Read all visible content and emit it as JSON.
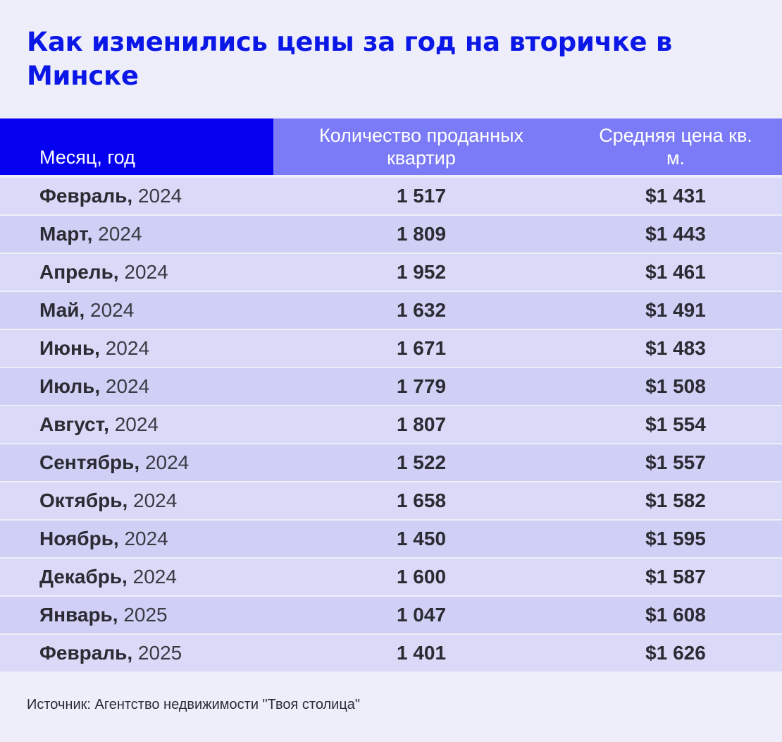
{
  "title": "Как изменились цены за год на вторичке в Минске",
  "chart_data": {
    "type": "table",
    "title": "Как изменились цены за год на вторичке в Минске",
    "columns": [
      "Месяц, год",
      "Количество проданных квартир",
      "Средняя цена кв. м."
    ],
    "rows": [
      {
        "month": "Февраль,",
        "year": "2024",
        "count": "1 517",
        "price": "$1 431"
      },
      {
        "month": "Март,",
        "year": "2024",
        "count": "1 809",
        "price": "$1 443"
      },
      {
        "month": "Апрель,",
        "year": "2024",
        "count": "1 952",
        "price": "$1 461"
      },
      {
        "month": "Май,",
        "year": "2024",
        "count": "1 632",
        "price": "$1 491"
      },
      {
        "month": "Июнь,",
        "year": "2024",
        "count": "1 671",
        "price": "$1 483"
      },
      {
        "month": "Июль,",
        "year": "2024",
        "count": "1 779",
        "price": "$1 508"
      },
      {
        "month": "Август,",
        "year": "2024",
        "count": "1 807",
        "price": "$1 554"
      },
      {
        "month": "Сентябрь,",
        "year": "2024",
        "count": "1 522",
        "price": "$1 557"
      },
      {
        "month": "Октябрь,",
        "year": "2024",
        "count": "1 658",
        "price": "$1 582"
      },
      {
        "month": "Ноябрь,",
        "year": "2024",
        "count": "1 450",
        "price": "$1 595"
      },
      {
        "month": "Декабрь,",
        "year": "2024",
        "count": "1 600",
        "price": "$1 587"
      },
      {
        "month": "Январь,",
        "year": "2025",
        "count": "1 047",
        "price": "$1 608"
      },
      {
        "month": "Февраль,",
        "year": "2025",
        "count": "1 401",
        "price": "$1 626"
      }
    ],
    "colors": {
      "title": "#0a17e6",
      "header_month": "#0500f0",
      "header_rest": "#7b7af7",
      "row": "#dadaf8",
      "row_alt": "#d0d0f6",
      "background": "#eeeefa"
    }
  },
  "source": "Источник: Агентство недвижимости \"Твоя столица\""
}
